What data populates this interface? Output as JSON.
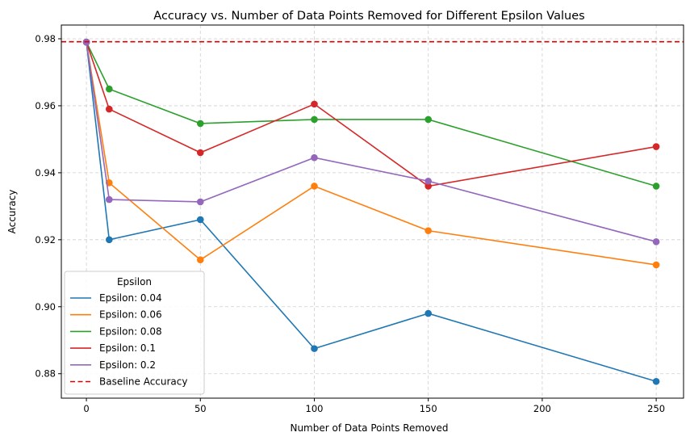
{
  "chart_data": {
    "type": "line",
    "title": "Accuracy vs. Number of Data Points Removed for Different Epsilon Values",
    "xlabel": "Number of Data Points Removed",
    "ylabel": "Accuracy",
    "xlim": [
      -11,
      262
    ],
    "ylim": [
      0.8727,
      0.9841
    ],
    "xticks": [
      0,
      50,
      100,
      150,
      200,
      250
    ],
    "xtick_labels": [
      "0",
      "50",
      "100",
      "150",
      "200",
      "250"
    ],
    "yticks": [
      0.88,
      0.9,
      0.92,
      0.94,
      0.96,
      0.98
    ],
    "ytick_labels": [
      "0.88",
      "0.90",
      "0.92",
      "0.94",
      "0.96",
      "0.98"
    ],
    "grid": true,
    "legend": {
      "title": "Epsilon",
      "placement": "lower-left"
    },
    "x": [
      0,
      10,
      50,
      100,
      150,
      250
    ],
    "series": [
      {
        "name": "Epsilon: 0.04",
        "color": "#1f77b4",
        "values": [
          0.979,
          0.92,
          0.926,
          0.8875,
          0.898,
          0.8777
        ]
      },
      {
        "name": "Epsilon: 0.06",
        "color": "#ff7f0e",
        "values": [
          0.979,
          0.937,
          0.914,
          0.936,
          0.9227,
          0.9125
        ]
      },
      {
        "name": "Epsilon: 0.08",
        "color": "#2ca02c",
        "values": [
          0.979,
          0.965,
          0.9547,
          0.9559,
          0.9559,
          0.936
        ]
      },
      {
        "name": "Epsilon: 0.1",
        "color": "#d62728",
        "values": [
          0.979,
          0.959,
          0.946,
          0.9605,
          0.936,
          0.9478
        ]
      },
      {
        "name": "Epsilon: 0.2",
        "color": "#9467bd",
        "values": [
          0.979,
          0.932,
          0.9313,
          0.9445,
          0.9375,
          0.9194
        ]
      }
    ],
    "baseline": {
      "name": "Baseline Accuracy",
      "value": 0.9791,
      "color": "#dd0000"
    }
  }
}
